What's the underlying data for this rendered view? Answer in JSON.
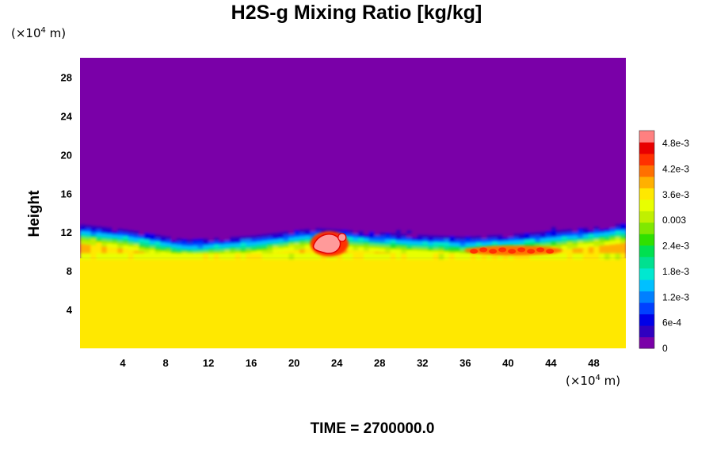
{
  "chart_data": {
    "type": "heatmap",
    "title": "H2S-g Mixing Ratio [kg/kg]",
    "ylabel": "Height",
    "x_unit": {
      "prefix": "(×10",
      "exp": "4",
      "suffix": " m)"
    },
    "y_unit": {
      "prefix": "(×10",
      "exp": "4",
      "suffix": " m)"
    },
    "xlim": [
      0,
      51
    ],
    "ylim": [
      0,
      30
    ],
    "x_ticks": [
      "4",
      "8",
      "12",
      "16",
      "20",
      "24",
      "28",
      "32",
      "36",
      "40",
      "44",
      "48"
    ],
    "x_tick_values": [
      4,
      8,
      12,
      16,
      20,
      24,
      28,
      32,
      36,
      40,
      44,
      48
    ],
    "y_ticks": [
      "4",
      "8",
      "12",
      "16",
      "20",
      "24",
      "28"
    ],
    "y_tick_values": [
      4,
      8,
      12,
      16,
      20,
      24,
      28
    ],
    "colorbar": {
      "range": [
        0,
        0.0051
      ],
      "labels": [
        "0",
        "6e-4",
        "1.2e-3",
        "1.8e-3",
        "2.4e-3",
        "0.003",
        "3.6e-3",
        "4.2e-3",
        "4.8e-3"
      ],
      "label_values": [
        0,
        0.0006,
        0.0012,
        0.0018,
        0.0024,
        0.003,
        0.0036,
        0.0042,
        0.0048
      ],
      "colors": [
        "#7a00a8",
        "#3000c0",
        "#0000e8",
        "#0040ff",
        "#0080ff",
        "#00c0ff",
        "#00e8d0",
        "#00e090",
        "#00e050",
        "#30e000",
        "#80e800",
        "#c0f000",
        "#e8ff00",
        "#ffe800",
        "#ffb000",
        "#ff7000",
        "#ff3000",
        "#e80000",
        "#ff8080"
      ]
    },
    "field_description": {
      "lower_layer_value": 0.0035,
      "upper_layer_value": 0,
      "top_boundary_height": [
        13.2,
        12.7,
        11.6,
        12.0,
        12.8,
        12.5,
        12.2,
        11.9,
        12.3,
        12.9,
        13.3
      ],
      "top_boundary_x": [
        0,
        4,
        10,
        16,
        22,
        26,
        30,
        36,
        42,
        48,
        51
      ],
      "high_spots": [
        {
          "x": 23.3,
          "y": 10.8,
          "value": 0.005
        },
        {
          "x": 40.5,
          "y": 10.1,
          "value": 0.0045
        }
      ]
    }
  },
  "footer": {
    "time_label": "TIME = 2700000.0"
  }
}
